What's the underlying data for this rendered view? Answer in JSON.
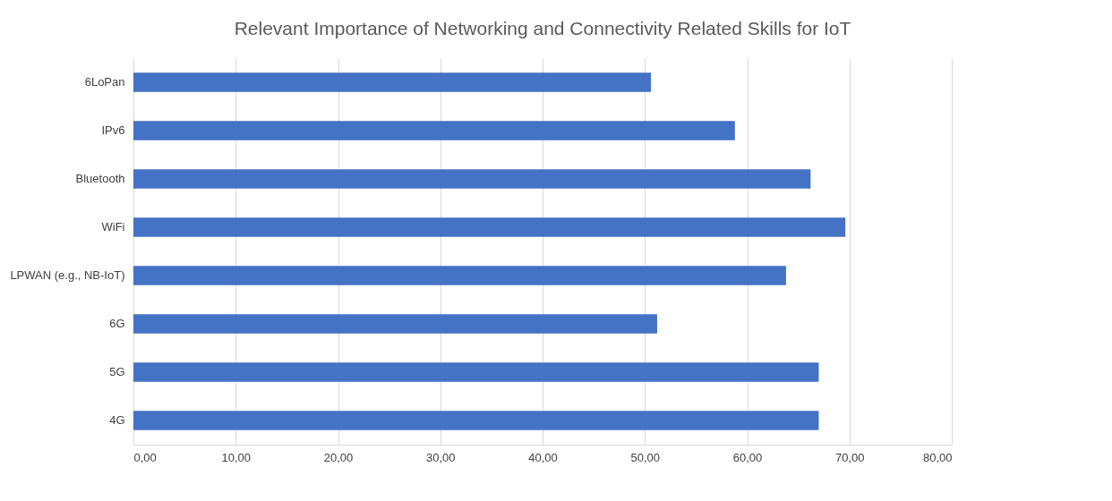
{
  "chart_data": {
    "type": "bar",
    "orientation": "horizontal",
    "title": "Relevant Importance of Networking and Connectivity Related Skills for IoT",
    "categories": [
      "6LoPan",
      "IPv6",
      "Bluetooth",
      "WiFi",
      "LPWAN (e.g., NB-IoT)",
      "6G",
      "5G",
      "4G"
    ],
    "values": [
      50.6,
      58.8,
      66.2,
      69.6,
      63.8,
      51.2,
      67.0,
      67.0
    ],
    "color": "#4472c4",
    "xlim": [
      0,
      80
    ],
    "xticks": [
      {
        "value": 0,
        "label": "0,00"
      },
      {
        "value": 10,
        "label": "10,00"
      },
      {
        "value": 20,
        "label": "20,00"
      },
      {
        "value": 30,
        "label": "30,00"
      },
      {
        "value": 40,
        "label": "40,00"
      },
      {
        "value": 50,
        "label": "50,00"
      },
      {
        "value": 60,
        "label": "60,00"
      },
      {
        "value": 70,
        "label": "70,00"
      },
      {
        "value": 80,
        "label": "80,00"
      }
    ],
    "grid": true
  }
}
